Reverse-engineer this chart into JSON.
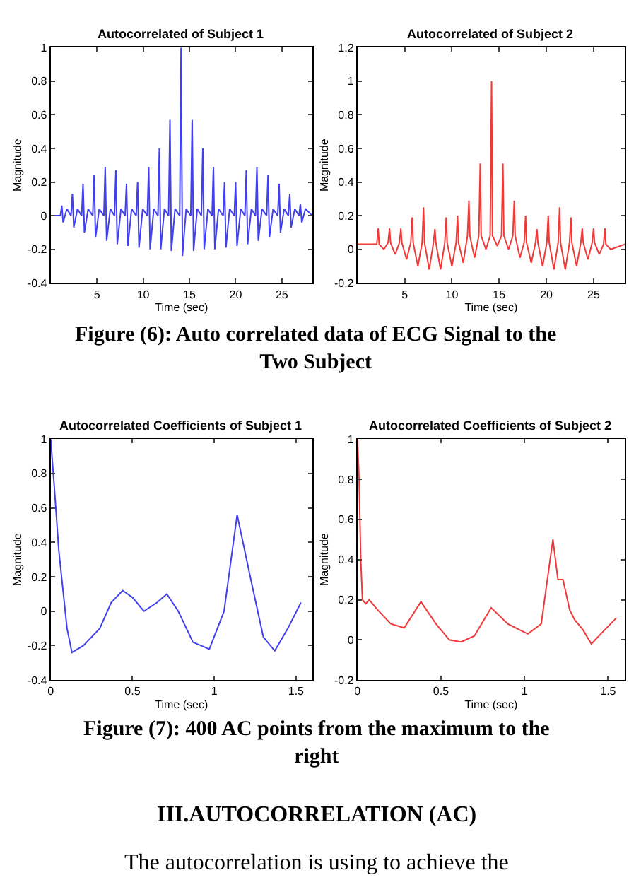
{
  "chart_data": [
    {
      "type": "line",
      "title": "Autocorrelated of Subject 1",
      "xlabel": "Time (sec)",
      "ylabel": "Magnitude",
      "xlim": [
        0,
        28.3
      ],
      "xticks": [
        5,
        10,
        15,
        20,
        25
      ],
      "ylim": [
        -0.4,
        1
      ],
      "yticks": [
        -0.4,
        -0.2,
        0,
        0.2,
        0.4,
        0.6,
        0.8,
        1
      ],
      "x": [
        0,
        1.05,
        1.2,
        1.35,
        1.75,
        2.2,
        2.35,
        2.5,
        2.9,
        3.35,
        3.5,
        3.65,
        4.05,
        4.55,
        4.7,
        4.85,
        5.25,
        5.75,
        5.9,
        6.05,
        6.45,
        6.9,
        7.05,
        7.2,
        7.6,
        8.05,
        8.2,
        8.35,
        8.75,
        9.25,
        9.4,
        9.55,
        9.95,
        10.45,
        10.6,
        10.75,
        11.15,
        11.6,
        11.75,
        11.9,
        12.3,
        12.75,
        12.9,
        13.05,
        13.45,
        13.95,
        14.1,
        14.25,
        14.65,
        15.15,
        15.3,
        15.45,
        15.85,
        16.3,
        16.45,
        16.6,
        17.0,
        17.45,
        17.6,
        17.75,
        18.15,
        18.65,
        18.8,
        18.95,
        19.35,
        19.85,
        20.0,
        20.15,
        20.55,
        21.0,
        21.15,
        21.3,
        21.7,
        22.15,
        22.3,
        22.45,
        22.85,
        23.35,
        23.5,
        23.65,
        24.05,
        24.55,
        24.7,
        24.85,
        25.25,
        25.7,
        25.85,
        26.0,
        26.4,
        26.85,
        27.0,
        27.15,
        27.55,
        28.3
      ],
      "series": [
        {
          "color": "#4040ee",
          "values": [
            0,
            0,
            0.06,
            -0.04,
            0.04,
            0,
            0.13,
            -0.07,
            0.04,
            0,
            0.19,
            -0.1,
            0.04,
            0,
            0.24,
            -0.13,
            0.04,
            0,
            0.29,
            -0.15,
            0.04,
            0,
            0.27,
            -0.17,
            0.04,
            0,
            0.19,
            -0.18,
            0.04,
            0,
            0.2,
            -0.19,
            0.04,
            0,
            0.29,
            -0.2,
            0.04,
            0,
            0.4,
            -0.2,
            0.04,
            0,
            0.57,
            -0.21,
            0.04,
            0,
            1.0,
            -0.24,
            0.04,
            0,
            0.57,
            -0.21,
            0.04,
            0,
            0.4,
            -0.2,
            0.04,
            0,
            0.29,
            -0.2,
            0.04,
            0,
            0.2,
            -0.19,
            0.04,
            0,
            0.2,
            -0.18,
            0.04,
            0,
            0.27,
            -0.17,
            0.04,
            0,
            0.29,
            -0.15,
            0.04,
            0,
            0.24,
            -0.13,
            0.04,
            0,
            0.19,
            -0.1,
            0.04,
            0,
            0.13,
            -0.07,
            0.04,
            0,
            0.07,
            -0.04,
            0.04,
            0
          ]
        }
      ],
      "annotations": [
        "Figure (6): Auto correlated data of ECG Signal to the Two Subject"
      ]
    },
    {
      "type": "line",
      "title": "Autocorrelated of Subject 2",
      "xlabel": "Time (sec)",
      "ylabel": "Magnitude",
      "xlim": [
        0,
        28.3
      ],
      "xticks": [
        5,
        10,
        15,
        20,
        25
      ],
      "ylim": [
        -0.2,
        1.2
      ],
      "yticks": [
        -0.2,
        0,
        0.2,
        0.4,
        0.6,
        0.8,
        1,
        1.2
      ],
      "x": [
        0,
        2.05,
        2.2,
        2.3,
        2.8,
        3.25,
        3.4,
        3.5,
        4.0,
        4.45,
        4.6,
        4.7,
        5.2,
        5.65,
        5.8,
        5.9,
        6.4,
        6.85,
        7.0,
        7.1,
        7.6,
        8.05,
        8.2,
        8.3,
        8.8,
        9.25,
        9.4,
        9.5,
        10.0,
        10.45,
        10.6,
        10.7,
        11.2,
        11.65,
        11.8,
        11.9,
        12.4,
        12.85,
        13.0,
        13.1,
        13.6,
        14.05,
        14.2,
        14.3,
        14.8,
        15.25,
        15.4,
        15.5,
        16.0,
        16.45,
        16.6,
        16.7,
        17.2,
        17.65,
        17.8,
        17.9,
        18.4,
        18.85,
        19.0,
        19.1,
        19.6,
        20.05,
        20.2,
        20.3,
        20.8,
        21.25,
        21.4,
        21.5,
        22.0,
        22.45,
        22.6,
        22.7,
        23.2,
        23.65,
        23.8,
        23.9,
        24.4,
        24.85,
        25.0,
        25.1,
        25.6,
        26.05,
        26.2,
        26.3,
        26.8,
        28.3
      ],
      "series": [
        {
          "color": "#f03a3a",
          "values": [
            0.03,
            0.03,
            0.125,
            0.03,
            0.0,
            0.04,
            0.125,
            0.04,
            -0.03,
            0.04,
            0.125,
            0.04,
            -0.06,
            0.04,
            0.19,
            0.04,
            -0.1,
            0.04,
            0.25,
            0.04,
            -0.12,
            0.04,
            0.12,
            0.04,
            -0.12,
            0.04,
            0.19,
            0.04,
            -0.1,
            0.04,
            0.2,
            0.04,
            -0.08,
            0.08,
            0.29,
            0.08,
            -0.05,
            0.08,
            0.51,
            0.08,
            0.0,
            0.08,
            1.0,
            0.08,
            0.02,
            0.08,
            0.51,
            0.08,
            0.0,
            0.08,
            0.29,
            0.08,
            -0.05,
            0.04,
            0.2,
            0.04,
            -0.08,
            0.04,
            0.12,
            0.04,
            -0.1,
            0.04,
            0.2,
            0.04,
            -0.12,
            0.04,
            0.25,
            0.04,
            -0.12,
            0.04,
            0.19,
            0.04,
            -0.1,
            0.04,
            0.125,
            0.04,
            -0.06,
            0.04,
            0.125,
            0.04,
            -0.03,
            0.03,
            0.125,
            0.03,
            0.0,
            0.03
          ]
        }
      ]
    },
    {
      "type": "line",
      "title": "Autocorrelated Coefficients of Subject 1",
      "xlabel": "Time (sec)",
      "ylabel": "Magnitude",
      "xlim": [
        0,
        1.6
      ],
      "xticks": [
        0,
        0.5,
        1,
        1.5
      ],
      "ylim": [
        -0.4,
        1
      ],
      "yticks": [
        -0.4,
        -0.2,
        0,
        0.2,
        0.4,
        0.6,
        0.8,
        1
      ],
      "x": [
        0,
        0.02,
        0.05,
        0.1,
        0.13,
        0.2,
        0.3,
        0.37,
        0.44,
        0.5,
        0.57,
        0.65,
        0.71,
        0.78,
        0.87,
        0.97,
        1.06,
        1.14,
        1.22,
        1.3,
        1.37,
        1.45,
        1.53
      ],
      "series": [
        {
          "color": "#4040ee",
          "values": [
            1,
            0.75,
            0.35,
            -0.1,
            -0.24,
            -0.2,
            -0.1,
            0.05,
            0.12,
            0.08,
            0.0,
            0.05,
            0.1,
            0.0,
            -0.18,
            -0.22,
            0.0,
            0.56,
            0.2,
            -0.15,
            -0.23,
            -0.1,
            0.05
          ]
        }
      ],
      "annotations": [
        "Figure (7): 400 AC points from the maximum to the right",
        "III.AUTOCORRELATION (AC)",
        "The autocorrelation is using to achieve the"
      ]
    },
    {
      "type": "line",
      "title": "Autocorrelated Coefficients of Subject 2",
      "xlabel": "Time (sec)",
      "ylabel": "Magnitude",
      "xlim": [
        0,
        1.6
      ],
      "xticks": [
        0,
        0.5,
        1,
        1.5
      ],
      "ylim": [
        -0.2,
        1
      ],
      "yticks": [
        -0.2,
        0,
        0.2,
        0.4,
        0.6,
        0.8,
        1
      ],
      "x": [
        0,
        0.01,
        0.02,
        0.03,
        0.05,
        0.07,
        0.12,
        0.2,
        0.28,
        0.38,
        0.47,
        0.55,
        0.62,
        0.7,
        0.8,
        0.9,
        0.97,
        1.02,
        1.1,
        1.17,
        1.2,
        1.23,
        1.27,
        1.3,
        1.35,
        1.4,
        1.48,
        1.55
      ],
      "series": [
        {
          "color": "#f03a3a",
          "values": [
            1,
            0.8,
            0.4,
            0.2,
            0.18,
            0.2,
            0.15,
            0.08,
            0.06,
            0.19,
            0.08,
            0.0,
            -0.01,
            0.02,
            0.16,
            0.08,
            0.05,
            0.03,
            0.08,
            0.5,
            0.3,
            0.3,
            0.15,
            0.1,
            0.05,
            -0.02,
            0.05,
            0.11
          ]
        }
      ]
    }
  ]
}
